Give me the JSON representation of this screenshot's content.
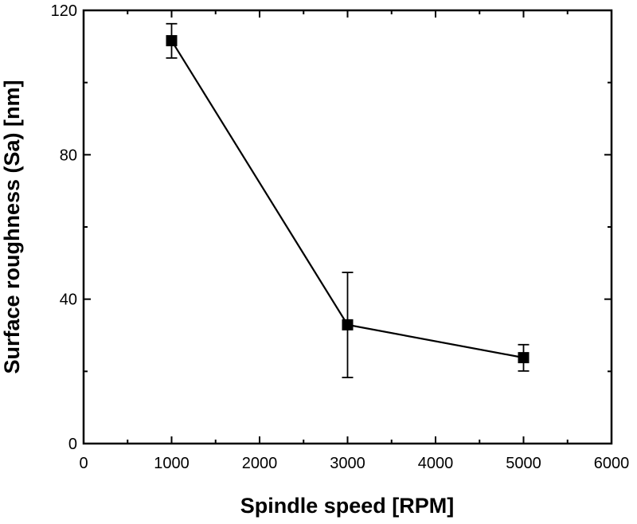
{
  "chart_data": {
    "type": "line",
    "title": "",
    "xlabel": "Spindle speed [RPM]",
    "ylabel": "Surface roughness (Sa) [nm]",
    "xlim": [
      0,
      6000
    ],
    "ylim": [
      0,
      120
    ],
    "xticks": [
      0,
      1000,
      2000,
      3000,
      4000,
      5000,
      6000
    ],
    "yticks": [
      0,
      40,
      80,
      120
    ],
    "grid": false,
    "marker": "square",
    "color": "#000000",
    "series": [
      {
        "x": [
          1000,
          3000,
          5000
        ],
        "y": [
          111.6,
          32.9,
          23.8
        ],
        "error_low": [
          106.8,
          18.3,
          20.1
        ],
        "error_high": [
          116.3,
          47.4,
          27.4
        ]
      }
    ]
  }
}
